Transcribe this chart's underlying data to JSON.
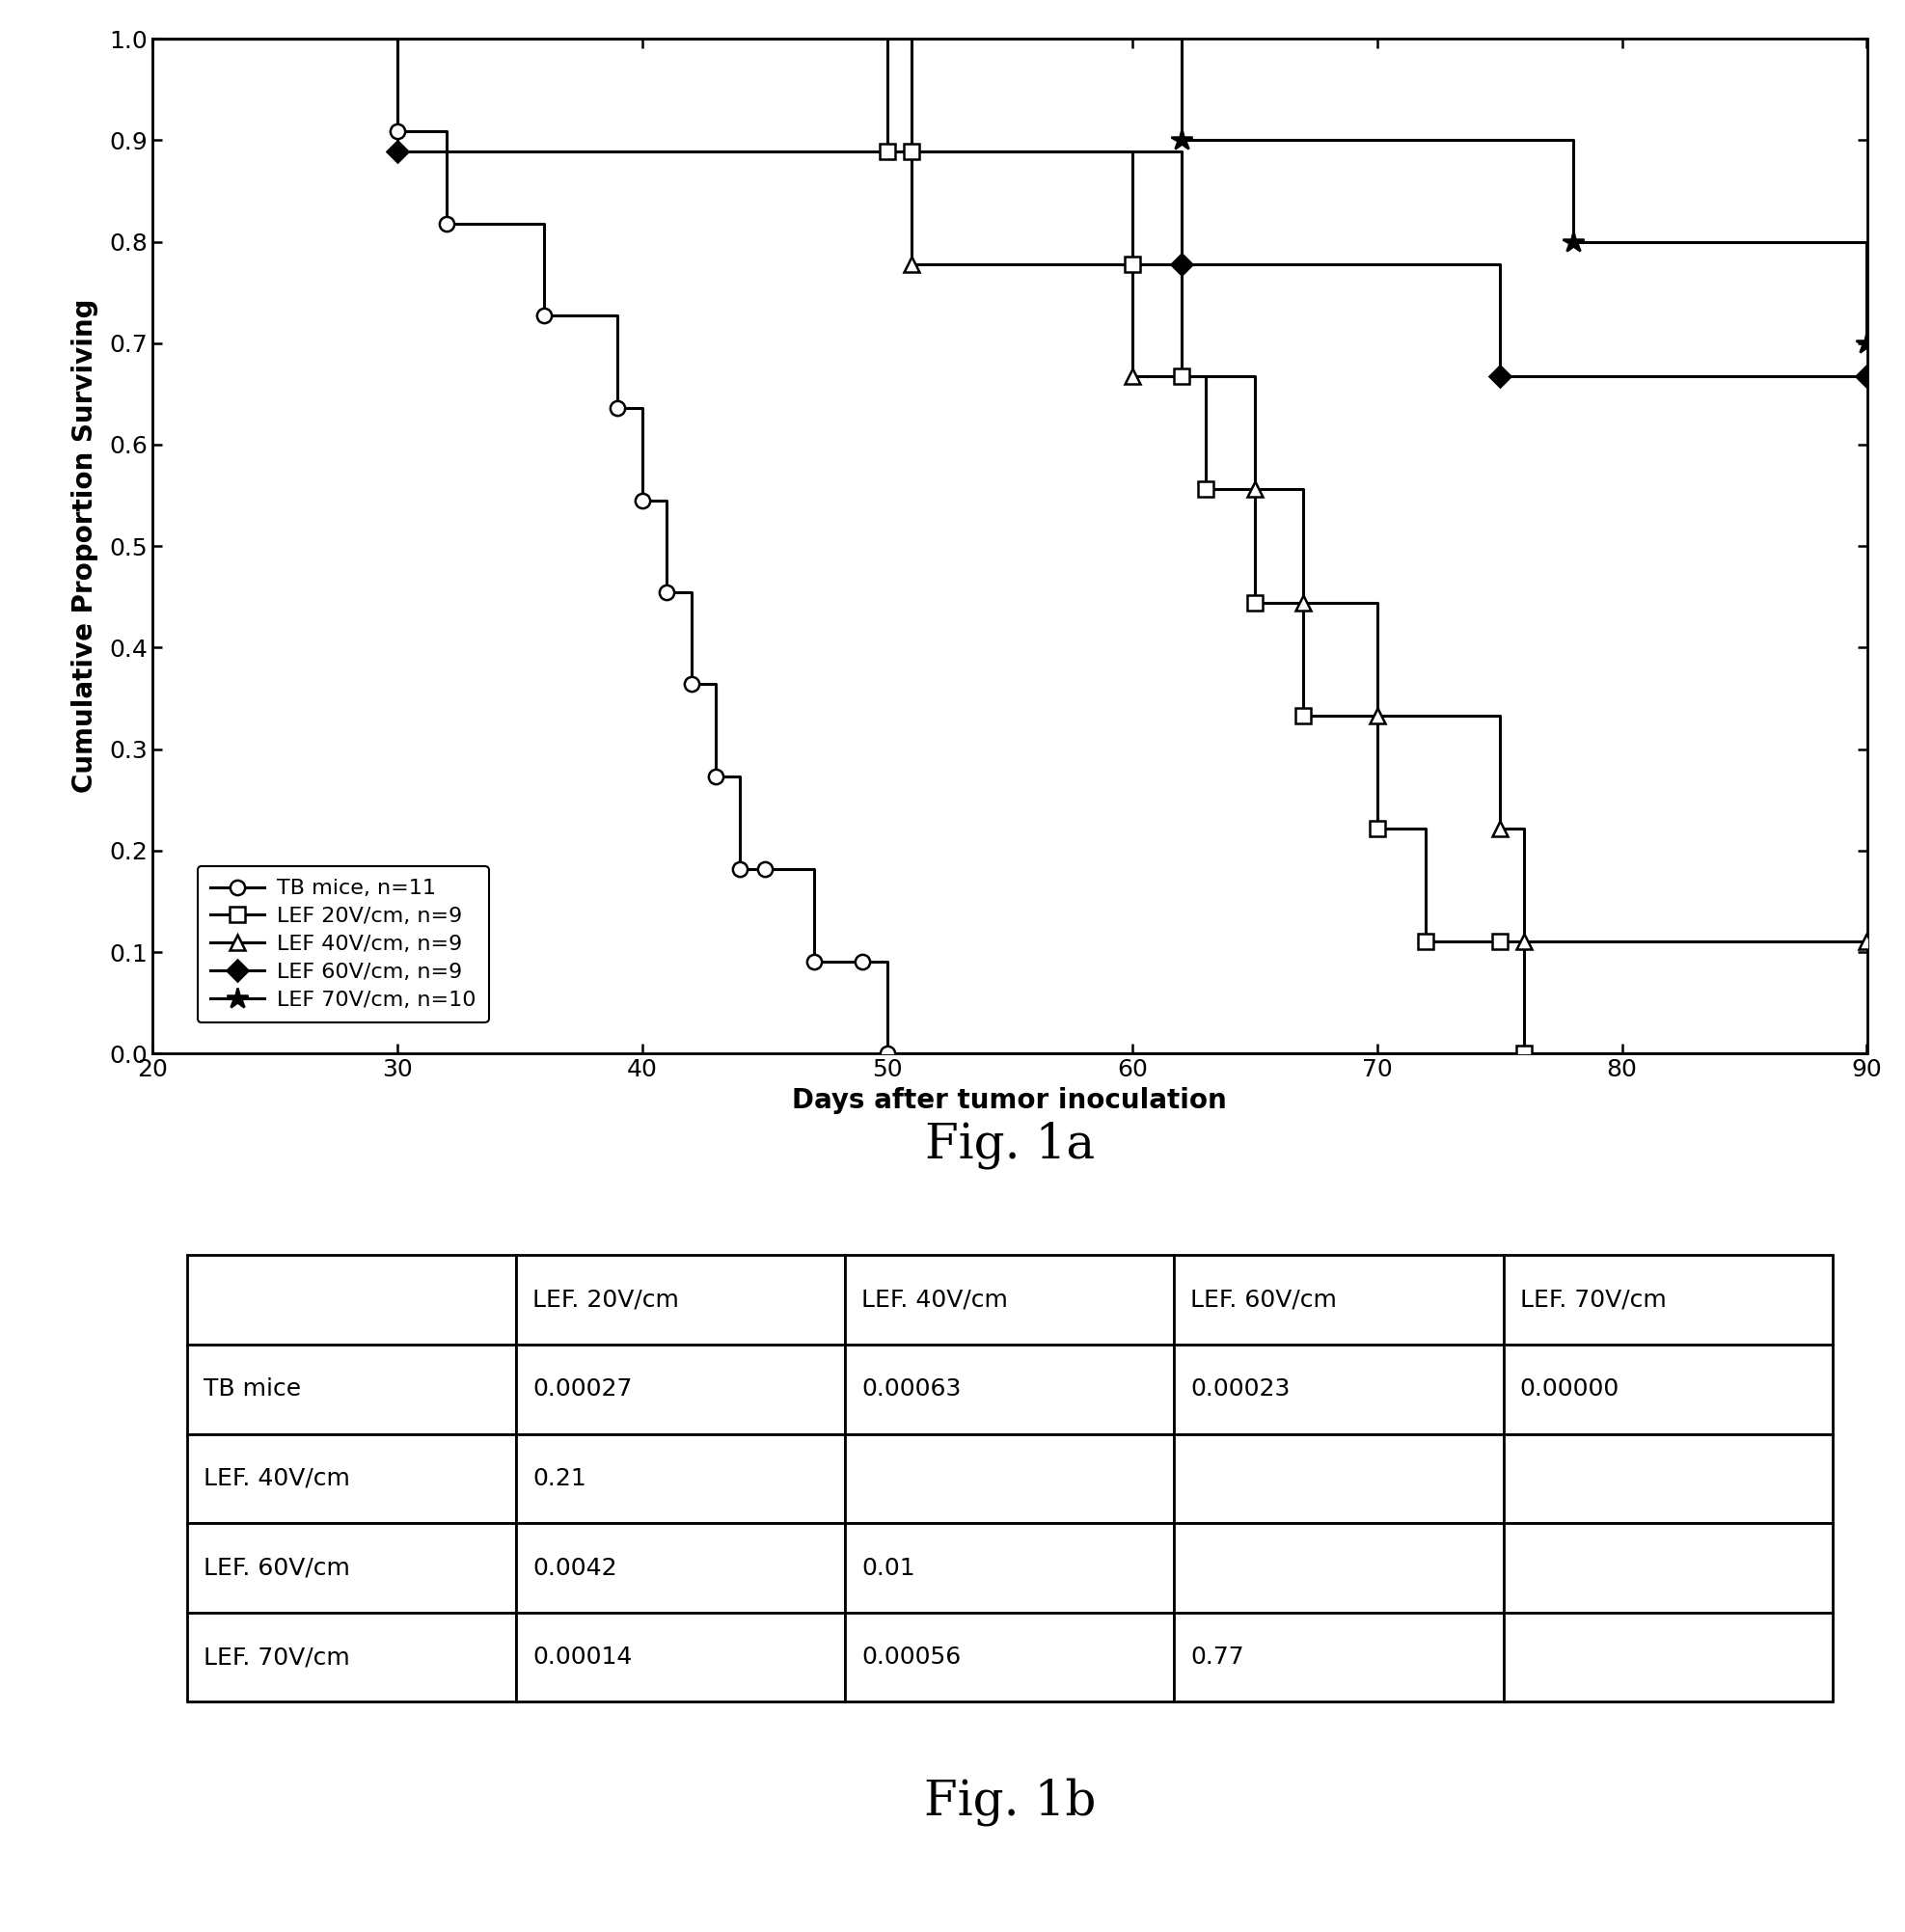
{
  "fig1a_title": "Fig. 1a",
  "fig1b_title": "Fig. 1b",
  "xlabel": "Days after tumor inoculation",
  "ylabel": "Cumulative Proportion Surviving",
  "xlim": [
    20,
    90
  ],
  "ylim": [
    0.0,
    1.0
  ],
  "xticks": [
    20,
    30,
    40,
    50,
    60,
    70,
    80,
    90
  ],
  "yticks": [
    0.0,
    0.1,
    0.2,
    0.3,
    0.4,
    0.5,
    0.6,
    0.7,
    0.8,
    0.9,
    1.0
  ],
  "series": [
    {
      "label": "TB mice, n=11",
      "marker": "o",
      "marker_fill": "white",
      "x": [
        30,
        32,
        36,
        39,
        40,
        41,
        42,
        43,
        44,
        45,
        47,
        49,
        50
      ],
      "y": [
        0.909,
        0.818,
        0.727,
        0.636,
        0.545,
        0.455,
        0.364,
        0.273,
        0.182,
        0.182,
        0.091,
        0.091,
        0.0
      ]
    },
    {
      "label": "LEF 20V/cm, n=9",
      "marker": "s",
      "marker_fill": "white",
      "x": [
        50,
        51,
        60,
        62,
        63,
        65,
        67,
        70,
        72,
        75,
        76
      ],
      "y": [
        0.889,
        0.889,
        0.778,
        0.667,
        0.556,
        0.444,
        0.333,
        0.222,
        0.111,
        0.111,
        0.0
      ]
    },
    {
      "label": "LEF 40V/cm, n=9",
      "marker": "^",
      "marker_fill": "white",
      "x": [
        51,
        60,
        65,
        67,
        70,
        75,
        76,
        90
      ],
      "y": [
        0.778,
        0.667,
        0.556,
        0.444,
        0.333,
        0.222,
        0.111,
        0.111
      ]
    },
    {
      "label": "LEF 60V/cm, n=9",
      "marker": "D",
      "marker_fill": "black",
      "x": [
        30,
        62,
        75,
        90
      ],
      "y": [
        0.889,
        0.778,
        0.667,
        0.667
      ]
    },
    {
      "label": "LEF 70V/cm, n=10",
      "marker": "*",
      "marker_fill": "black",
      "x": [
        62,
        78,
        90
      ],
      "y": [
        0.9,
        0.8,
        0.7
      ]
    }
  ],
  "series_start": [
    [
      20,
      1.0
    ],
    [
      20,
      1.0
    ],
    [
      20,
      1.0
    ],
    [
      20,
      1.0
    ],
    [
      20,
      1.0
    ]
  ],
  "table_col_headers": [
    "",
    "LEF. 20V/cm",
    "LEF. 40V/cm",
    "LEF. 60V/cm",
    "LEF. 70V/cm"
  ],
  "table_row_headers": [
    "TB mice",
    "LEF. 40V/cm",
    "LEF. 60V/cm",
    "LEF. 70V/cm"
  ],
  "table_data": [
    [
      "0.00027",
      "0.00063",
      "0.00023",
      "0.00000"
    ],
    [
      "0.21",
      "",
      "",
      ""
    ],
    [
      "0.0042",
      "0.01",
      "",
      ""
    ],
    [
      "0.00014",
      "0.00056",
      "0.77",
      ""
    ]
  ],
  "bg_color": "#ffffff",
  "font_size_axis_label": 20,
  "font_size_tick": 18,
  "font_size_legend": 16,
  "font_size_fig_label": 36,
  "font_size_table": 18,
  "marker_sizes": [
    11,
    11,
    11,
    11,
    16
  ]
}
